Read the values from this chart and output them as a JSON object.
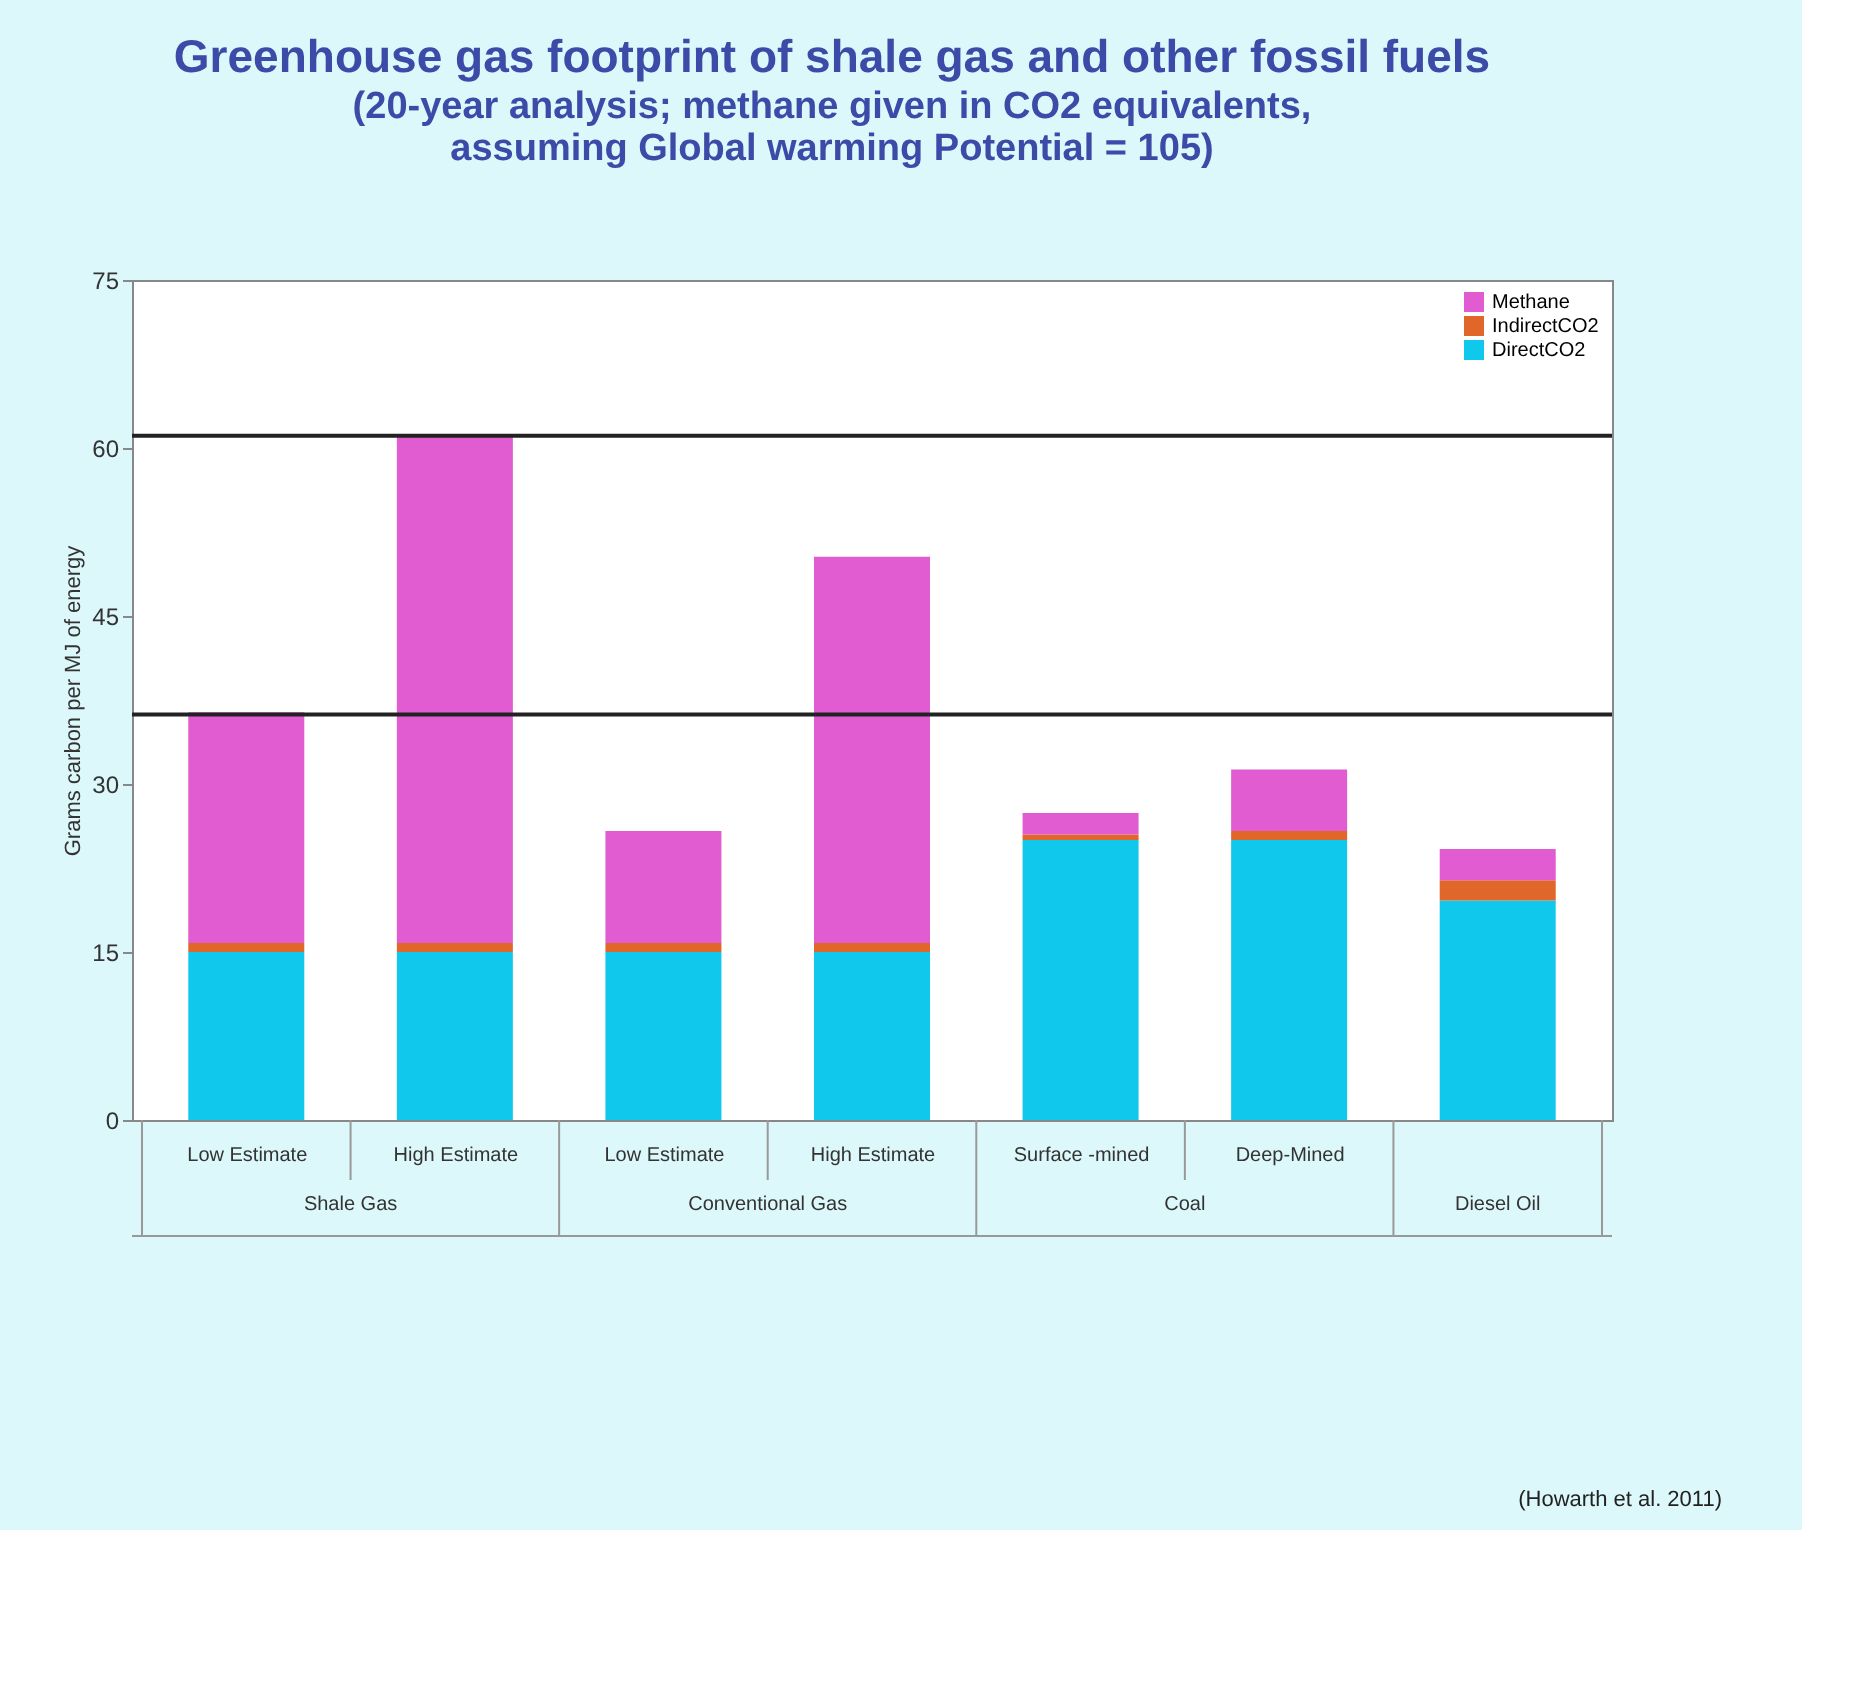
{
  "chart_data": {
    "type": "bar",
    "stacked": true,
    "title": "Greenhouse gas footprint of shale gas and other fossil fuels",
    "subtitle": "(20-year analysis; methane given in CO2 equivalents,\nassuming Global warming Potential = 105)",
    "ylabel": "Grams carbon per MJ of energy",
    "categories": [
      "Low Estimate",
      "High Estimate",
      "Low Estimate",
      "High Estimate",
      "Surface -mined",
      "Deep-Mined",
      null
    ],
    "series": [
      {
        "name": "DirectCO2",
        "color": "#10c8ec",
        "values": [
          15,
          15,
          15,
          15,
          25,
          25,
          19.6
        ]
      },
      {
        "name": "IndirectCO2",
        "color": "#e0662a",
        "values": [
          0.8,
          0.8,
          0.8,
          0.8,
          0.5,
          0.8,
          1.8
        ]
      },
      {
        "name": "Methane",
        "color": "#e05cd0",
        "values": [
          20.6,
          45.2,
          10,
          34.5,
          1.9,
          5.5,
          2.8
        ]
      }
    ],
    "ylim": [
      0,
      75
    ],
    "yticks": [
      0,
      15,
      30,
      45,
      60,
      75
    ],
    "grid": false,
    "legend": "top right",
    "ref_lines": [
      {
        "axis": "y",
        "value": 61.1,
        "color": "#222222"
      },
      {
        "axis": "y",
        "value": 36.2,
        "color": "#222222"
      }
    ],
    "annotations": [
      "Shale Gas",
      "Conventional Gas",
      "Coal",
      "Diesel Oil",
      "(Howarth et al. 2011)"
    ]
  }
}
